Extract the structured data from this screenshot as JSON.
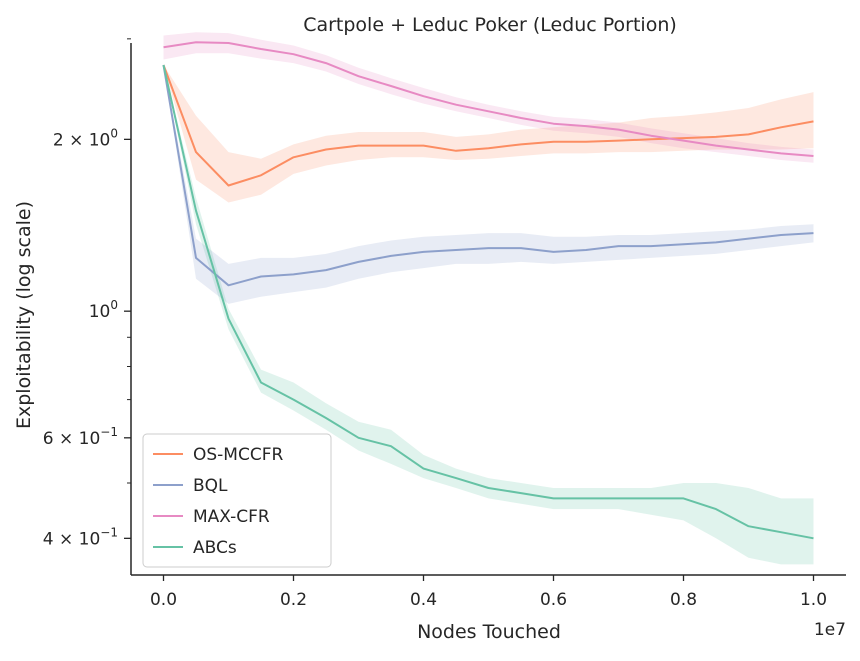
{
  "chart_data": {
    "type": "line",
    "title": "Cartpole + Leduc Poker (Leduc Portion)",
    "xlabel": "Nodes Touched",
    "ylabel": "Exploitability (log scale)",
    "x_offset_label": "1e7",
    "xlim": [
      -0.05,
      1.05
    ],
    "ylim": [
      0.345,
      2.95
    ],
    "yscale": "log",
    "x_ticks": [
      0.0,
      0.2,
      0.4,
      0.6,
      0.8,
      1.0
    ],
    "x_tick_labels": [
      "0.0",
      "0.2",
      "0.4",
      "0.6",
      "0.8",
      "1.0"
    ],
    "y_major_ticks": [
      {
        "value": 0.4,
        "mantissa": "4 × 10",
        "exponent": "−1"
      },
      {
        "value": 0.6,
        "mantissa": "6 × 10",
        "exponent": "−1"
      },
      {
        "value": 1.0,
        "mantissa": "10",
        "exponent": "0"
      },
      {
        "value": 2.0,
        "mantissa": "2 × 10",
        "exponent": "0"
      }
    ],
    "y_minor_ticks": [
      0.5,
      0.7,
      0.8,
      0.9,
      3.0
    ],
    "legend_position": "lower-left",
    "grid": false,
    "x": [
      0.0,
      0.05,
      0.1,
      0.15,
      0.2,
      0.25,
      0.3,
      0.35,
      0.4,
      0.45,
      0.5,
      0.55,
      0.6,
      0.65,
      0.7,
      0.75,
      0.8,
      0.85,
      0.9,
      0.95,
      1.0
    ],
    "series": [
      {
        "name": "OS-MCCFR",
        "color": "#fc8d62",
        "values": [
          2.7,
          1.9,
          1.66,
          1.73,
          1.86,
          1.92,
          1.95,
          1.95,
          1.95,
          1.91,
          1.93,
          1.96,
          1.98,
          1.98,
          1.99,
          2.0,
          2.01,
          2.02,
          2.04,
          2.1,
          2.15
        ],
        "lower": [
          2.7,
          1.7,
          1.55,
          1.6,
          1.74,
          1.8,
          1.84,
          1.86,
          1.86,
          1.84,
          1.85,
          1.87,
          1.89,
          1.89,
          1.9,
          1.9,
          1.91,
          1.92,
          1.92,
          1.92,
          1.93
        ],
        "upper": [
          2.7,
          2.2,
          1.9,
          1.85,
          1.96,
          2.03,
          2.06,
          2.06,
          2.06,
          2.02,
          2.04,
          2.08,
          2.1,
          2.12,
          2.14,
          2.18,
          2.2,
          2.23,
          2.27,
          2.35,
          2.42
        ]
      },
      {
        "name": "BQL",
        "color": "#8da0cb",
        "values": [
          2.7,
          1.24,
          1.11,
          1.15,
          1.16,
          1.18,
          1.22,
          1.25,
          1.27,
          1.28,
          1.29,
          1.29,
          1.27,
          1.28,
          1.3,
          1.3,
          1.31,
          1.32,
          1.34,
          1.36,
          1.37
        ],
        "lower": [
          2.7,
          1.14,
          1.03,
          1.06,
          1.08,
          1.1,
          1.14,
          1.17,
          1.19,
          1.21,
          1.21,
          1.22,
          1.21,
          1.22,
          1.23,
          1.24,
          1.25,
          1.26,
          1.28,
          1.3,
          1.32
        ],
        "upper": [
          2.7,
          1.34,
          1.21,
          1.24,
          1.24,
          1.26,
          1.3,
          1.33,
          1.35,
          1.36,
          1.37,
          1.37,
          1.35,
          1.35,
          1.36,
          1.36,
          1.37,
          1.38,
          1.39,
          1.41,
          1.42
        ]
      },
      {
        "name": "MAX-CFR",
        "color": "#e78ac3",
        "values": [
          2.9,
          2.96,
          2.95,
          2.88,
          2.82,
          2.72,
          2.58,
          2.48,
          2.38,
          2.3,
          2.24,
          2.18,
          2.13,
          2.11,
          2.08,
          2.03,
          1.99,
          1.95,
          1.92,
          1.89,
          1.87
        ],
        "lower": [
          2.76,
          2.83,
          2.83,
          2.77,
          2.72,
          2.63,
          2.5,
          2.4,
          2.31,
          2.24,
          2.18,
          2.12,
          2.07,
          2.05,
          2.02,
          1.97,
          1.93,
          1.9,
          1.87,
          1.84,
          1.82
        ],
        "upper": [
          3.04,
          3.08,
          3.07,
          2.99,
          2.92,
          2.81,
          2.67,
          2.56,
          2.46,
          2.37,
          2.3,
          2.24,
          2.19,
          2.17,
          2.14,
          2.09,
          2.05,
          2.01,
          1.97,
          1.94,
          1.92
        ]
      },
      {
        "name": "ABCs",
        "color": "#66c2a5",
        "values": [
          2.7,
          1.5,
          0.97,
          0.75,
          0.7,
          0.65,
          0.6,
          0.58,
          0.53,
          0.51,
          0.49,
          0.48,
          0.47,
          0.47,
          0.47,
          0.47,
          0.47,
          0.45,
          0.42,
          0.41,
          0.4
        ],
        "lower": [
          2.7,
          1.42,
          0.93,
          0.72,
          0.67,
          0.62,
          0.57,
          0.54,
          0.51,
          0.49,
          0.47,
          0.46,
          0.45,
          0.45,
          0.45,
          0.44,
          0.43,
          0.4,
          0.37,
          0.36,
          0.36
        ],
        "upper": [
          2.7,
          1.58,
          1.01,
          0.79,
          0.75,
          0.69,
          0.64,
          0.62,
          0.56,
          0.53,
          0.51,
          0.5,
          0.49,
          0.49,
          0.49,
          0.49,
          0.5,
          0.5,
          0.49,
          0.47,
          0.47
        ]
      }
    ]
  }
}
